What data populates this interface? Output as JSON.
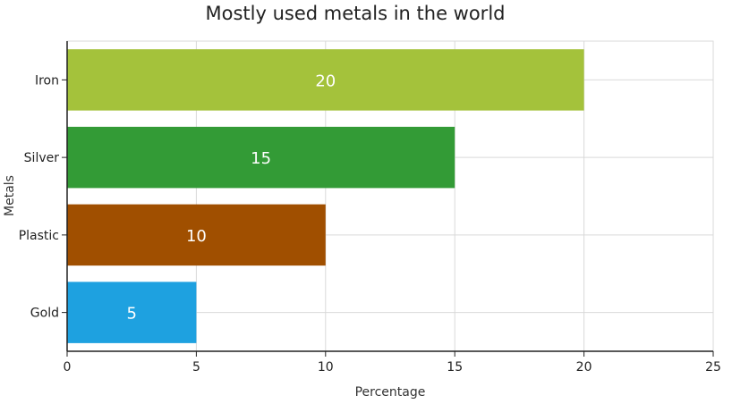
{
  "chart_data": {
    "type": "bar",
    "orientation": "horizontal",
    "title": "Mostly used metals in the world",
    "xlabel": "Percentage",
    "ylabel": "Metals",
    "categories": [
      "Iron",
      "Silver",
      "Plastic",
      "Gold"
    ],
    "values": [
      20,
      15,
      10,
      5
    ],
    "colors": [
      "#a4c23b",
      "#339b36",
      "#a04f00",
      "#1ea1e0"
    ],
    "xlim": [
      0,
      25
    ],
    "xticks": [
      0,
      5,
      10,
      15,
      20,
      25
    ],
    "grid": true,
    "data_labels": true
  }
}
